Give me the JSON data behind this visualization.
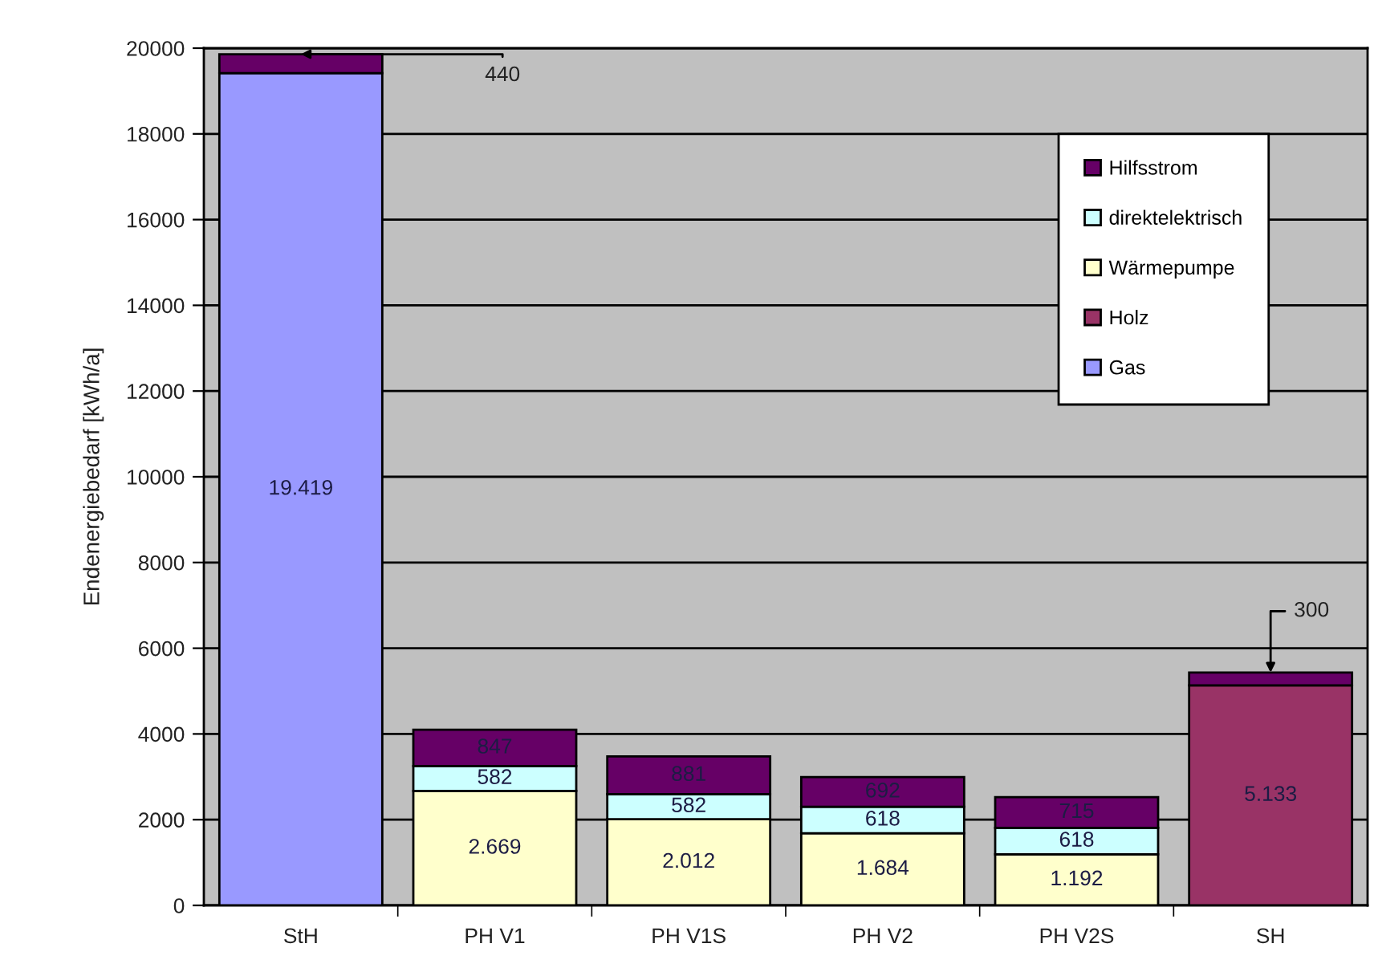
{
  "chart_data": {
    "type": "bar",
    "stacked": true,
    "ylabel": "Endenergiebedarf [kWh/a]",
    "categories": [
      "StH",
      "PH V1",
      "PH V1S",
      "PH V2",
      "PH V2S",
      "SH"
    ],
    "series": [
      {
        "name": "Gas",
        "color": "#9999ff",
        "values": [
          19419,
          null,
          null,
          null,
          null,
          null
        ],
        "value_labels": [
          "19.419",
          null,
          null,
          null,
          null,
          null
        ]
      },
      {
        "name": "Holz",
        "color": "#993366",
        "values": [
          null,
          null,
          null,
          null,
          null,
          5133
        ],
        "value_labels": [
          null,
          null,
          null,
          null,
          null,
          "5.133"
        ]
      },
      {
        "name": "Wärmepumpe",
        "color": "#ffffcc",
        "values": [
          null,
          2669,
          2012,
          1684,
          1192,
          null
        ],
        "value_labels": [
          null,
          "2.669",
          "2.012",
          "1.684",
          "1.192",
          null
        ]
      },
      {
        "name": "direktelektrisch",
        "color": "#ccffff",
        "values": [
          null,
          582,
          582,
          618,
          618,
          null
        ],
        "value_labels": [
          null,
          "582",
          "582",
          "618",
          "618",
          null
        ]
      },
      {
        "name": "Hilfsstrom",
        "color": "#660066",
        "values": [
          440,
          847,
          881,
          692,
          715,
          300
        ],
        "value_labels": [
          null,
          "847",
          "881",
          "692",
          "715",
          null
        ]
      }
    ],
    "ylim": [
      0,
      20000
    ],
    "yticks": [
      0,
      2000,
      4000,
      6000,
      8000,
      10000,
      12000,
      14000,
      16000,
      18000,
      20000
    ],
    "grid": "y",
    "legend": "top right",
    "annotations": [
      {
        "text": "440",
        "x": "StH",
        "y": 19859
      },
      {
        "text": "300",
        "x": "SH",
        "y": 5433
      }
    ]
  }
}
